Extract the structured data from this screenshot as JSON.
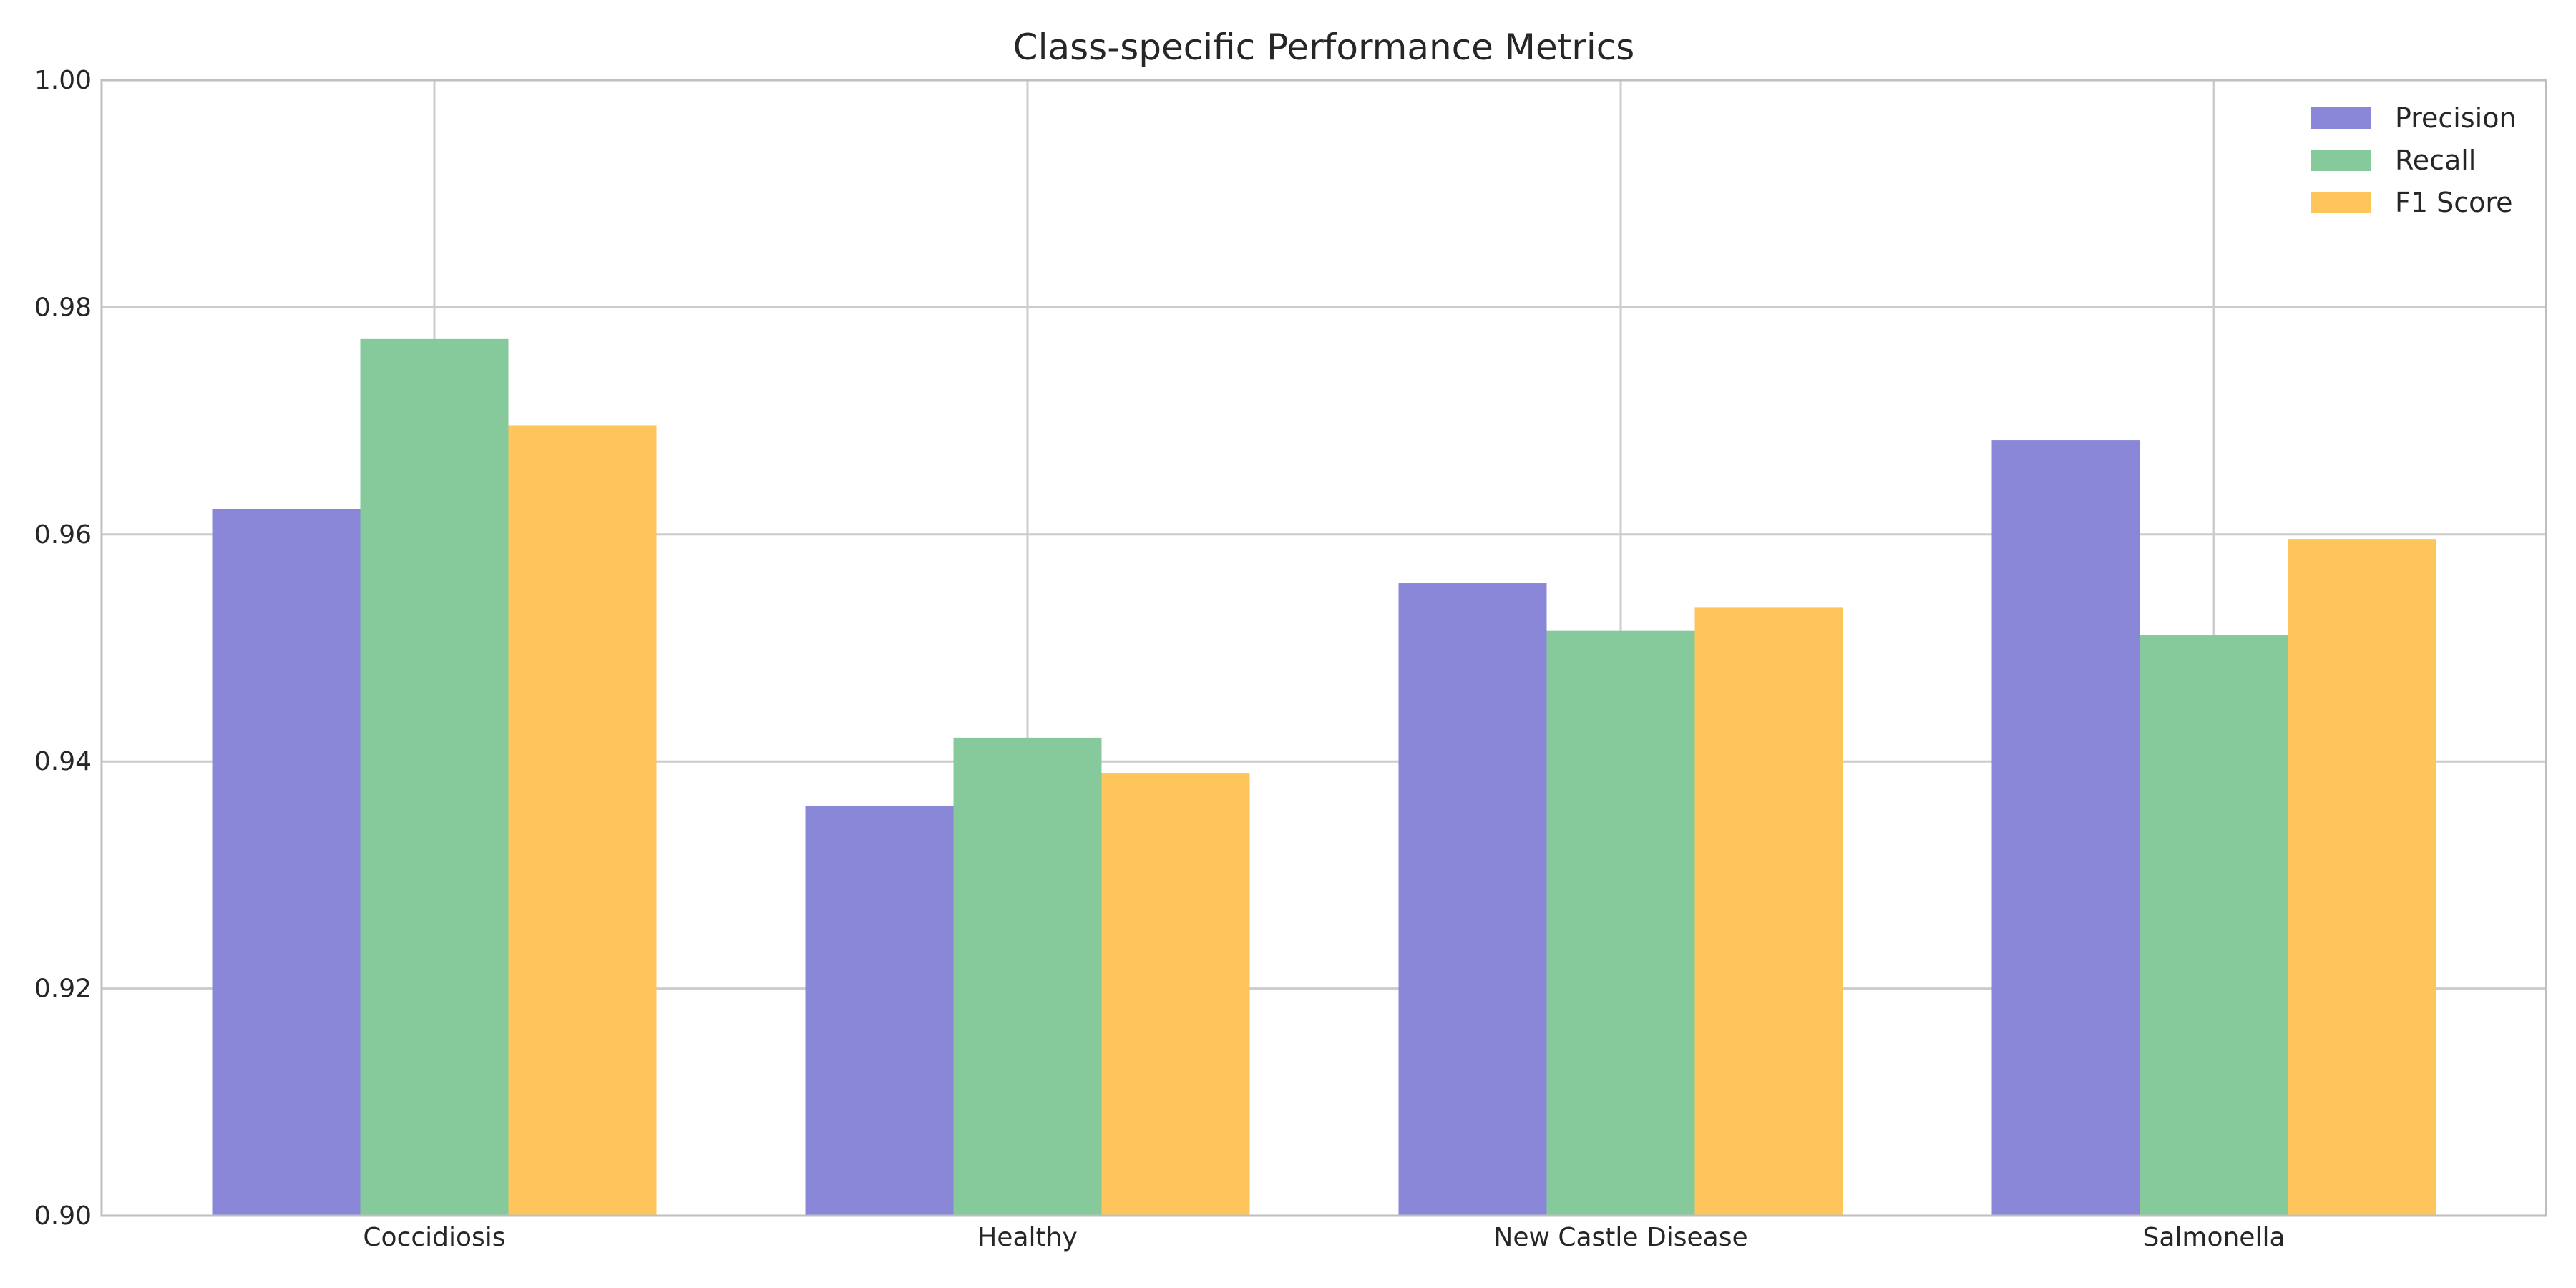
{
  "chart_data": {
    "type": "bar",
    "title": "Class-specific Performance Metrics",
    "xlabel": "",
    "ylabel": "",
    "categories": [
      "Coccidiosis",
      "Healthy",
      "New Castle Disease",
      "Salmonella"
    ],
    "series": [
      {
        "name": "Precision",
        "color": "#8a87d8",
        "values": [
          0.9622,
          0.9361,
          0.9557,
          0.9683
        ]
      },
      {
        "name": "Recall",
        "color": "#86c99b",
        "values": [
          0.9772,
          0.9421,
          0.9515,
          0.9511
        ]
      },
      {
        "name": "F1 Score",
        "color": "#fec65a",
        "values": [
          0.9696,
          0.939,
          0.9536,
          0.9596
        ]
      }
    ],
    "ylim": [
      0.9,
      1.0
    ],
    "yticks": [
      "0.90",
      "0.92",
      "0.94",
      "0.96",
      "0.98",
      "1.00"
    ],
    "grid": true,
    "legend_position": "top-right"
  }
}
